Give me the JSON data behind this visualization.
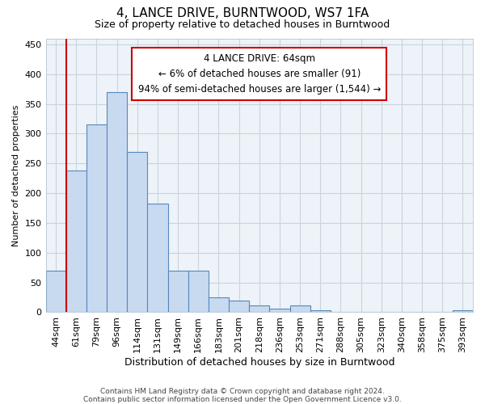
{
  "title": "4, LANCE DRIVE, BURNTWOOD, WS7 1FA",
  "subtitle": "Size of property relative to detached houses in Burntwood",
  "xlabel": "Distribution of detached houses by size in Burntwood",
  "ylabel": "Number of detached properties",
  "categories": [
    "44sqm",
    "61sqm",
    "79sqm",
    "96sqm",
    "114sqm",
    "131sqm",
    "149sqm",
    "166sqm",
    "183sqm",
    "201sqm",
    "218sqm",
    "236sqm",
    "253sqm",
    "271sqm",
    "288sqm",
    "305sqm",
    "323sqm",
    "340sqm",
    "358sqm",
    "375sqm",
    "393sqm"
  ],
  "values": [
    70,
    238,
    315,
    370,
    270,
    182,
    70,
    70,
    25,
    20,
    12,
    6,
    12,
    4,
    1,
    0,
    0,
    0,
    0,
    0,
    4
  ],
  "bar_color": "#c8daf0",
  "bar_edge_color": "#5588bb",
  "marker_line_color": "#cc0000",
  "annotation_line0": "4 LANCE DRIVE: 64sqm",
  "annotation_line1": "← 6% of detached houses are smaller (91)",
  "annotation_line2": "94% of semi-detached houses are larger (1,544) →",
  "annotation_box_facecolor": "#ffffff",
  "annotation_box_edgecolor": "#cc0000",
  "ylim": [
    0,
    460
  ],
  "yticks": [
    0,
    50,
    100,
    150,
    200,
    250,
    300,
    350,
    400,
    450
  ],
  "grid_color": "#c8d4de",
  "axes_facecolor": "#edf3f8",
  "title_fontsize": 11,
  "subtitle_fontsize": 9,
  "xlabel_fontsize": 9,
  "ylabel_fontsize": 8,
  "tick_fontsize": 8,
  "annot_fontsize": 8.5,
  "footer_fontsize": 6.5,
  "footer_line1": "Contains HM Land Registry data © Crown copyright and database right 2024.",
  "footer_line2": "Contains public sector information licensed under the Open Government Licence v3.0."
}
